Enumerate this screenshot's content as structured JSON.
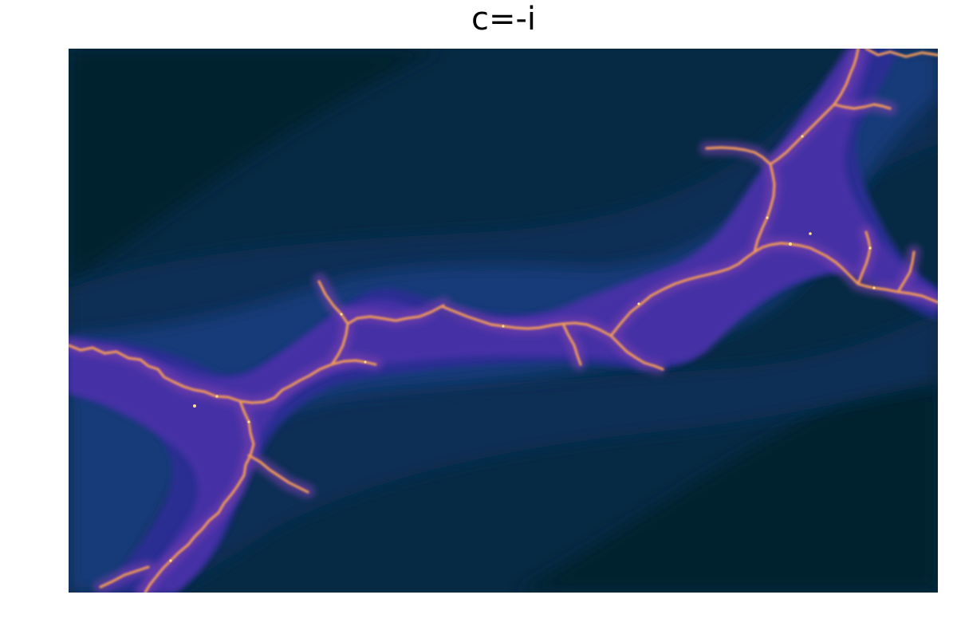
{
  "title": "c=-i",
  "colors": {
    "background": "#ffffff",
    "field_darkest": "#03202f",
    "field_dark": "#062a44",
    "field_mid": "#0a2f55",
    "field_blue": "#133a78",
    "field_indigo": "#2c2f92",
    "field_violet": "#4a32a8",
    "filament_magenta": "#b7509a",
    "filament_orange": "#f09a5a",
    "filament_core": "#ffe08a"
  }
}
